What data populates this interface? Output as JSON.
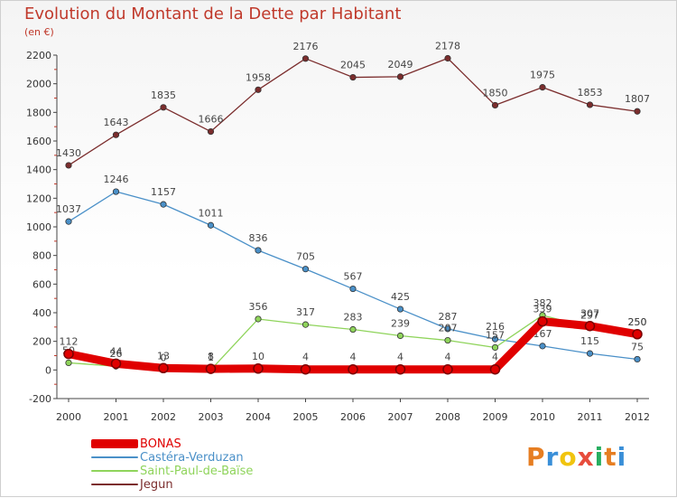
{
  "chart_data": {
    "type": "line",
    "title": "Evolution du Montant de la Dette par Habitant",
    "subtitle": "(en €)",
    "xlabel": "",
    "ylabel": "",
    "categories": [
      "2000",
      "2001",
      "2002",
      "2003",
      "2004",
      "2005",
      "2006",
      "2007",
      "2008",
      "2009",
      "2010",
      "2011",
      "2012"
    ],
    "ylim": [
      -200,
      2200
    ],
    "yticks": [
      -200,
      0,
      200,
      400,
      600,
      800,
      1000,
      1200,
      1400,
      1600,
      1800,
      2000,
      2200
    ],
    "grid": false,
    "legend_position": "bottom-left",
    "series": [
      {
        "name": "Jegun",
        "color": "#7b2d2d",
        "values": [
          1430,
          1643,
          1835,
          1666,
          1958,
          2176,
          2045,
          2049,
          2178,
          1850,
          1975,
          1853,
          1807
        ],
        "labels": [
          "1430",
          "1643",
          "1835",
          "1666",
          "1958",
          "2176",
          "2045",
          "2049",
          "2178",
          "1850",
          "1975",
          "1853",
          "1807"
        ]
      },
      {
        "name": "Castéra-Verduzan",
        "color": "#4a90c8",
        "values": [
          1037,
          1246,
          1157,
          1011,
          836,
          705,
          567,
          425,
          287,
          216,
          167,
          115,
          75
        ],
        "labels": [
          "1037",
          "1246",
          "1157",
          "1011",
          "836",
          "705",
          "567",
          "425",
          "287",
          "216",
          "167",
          "115",
          "75"
        ]
      },
      {
        "name": "Saint-Paul-de-Baïse",
        "color": "#8fd45b",
        "values": [
          50,
          26,
          0,
          1,
          356,
          317,
          283,
          239,
          207,
          157,
          382,
          297,
          250
        ],
        "labels": [
          "50",
          "26",
          "0",
          "1",
          "356",
          "317",
          "283",
          "239",
          "207",
          "157",
          "382",
          "297",
          "250"
        ]
      },
      {
        "name": "BONAS",
        "color": "#e00000",
        "values": [
          112,
          44,
          13,
          8,
          10,
          4,
          4,
          4,
          4,
          4,
          339,
          307,
          250
        ],
        "labels": [
          "112",
          "44",
          "13",
          "8",
          "10",
          "4",
          "4",
          "4",
          "4",
          "4",
          "339",
          "307",
          "250"
        ]
      }
    ]
  },
  "legend": {
    "items": [
      {
        "label": "BONAS",
        "color": "#e00000"
      },
      {
        "label": "Castéra-Verduzan",
        "color": "#4a90c8"
      },
      {
        "label": "Saint-Paul-de-Baïse",
        "color": "#8fd45b"
      },
      {
        "label": "Jegun",
        "color": "#7b2d2d"
      }
    ]
  },
  "logo": {
    "text": "Proxiti"
  }
}
